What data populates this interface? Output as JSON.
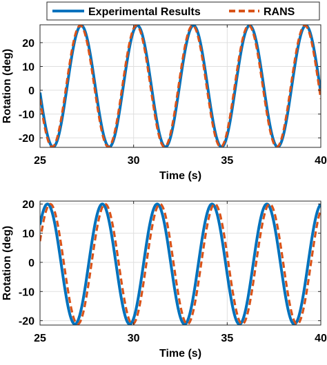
{
  "legend": {
    "placement": "top",
    "entries": [
      {
        "label": "Experimental Results",
        "color": "#0072BD",
        "style": "solid"
      },
      {
        "label": "RANS",
        "color": "#D95319",
        "style": "dashed"
      }
    ]
  },
  "chart_data": [
    {
      "type": "line",
      "xlabel": "Time (s)",
      "ylabel": "Rotation (deg)",
      "xlim": [
        25,
        40
      ],
      "ylim": [
        -24,
        27.5
      ],
      "xticks": [
        25,
        30,
        35,
        40
      ],
      "yticks": [
        -20,
        -10,
        0,
        10,
        20
      ],
      "grid": true,
      "series": [
        {
          "name": "Experimental Results",
          "color": "#0072BD",
          "style": "solid",
          "model": "sine",
          "amplitude": 25.5,
          "offset": 1.7,
          "period": 3.0,
          "peak_time": 27.2
        },
        {
          "name": "RANS",
          "color": "#D95319",
          "style": "dashed",
          "model": "sine",
          "amplitude": 25.5,
          "offset": 1.7,
          "period": 3.0,
          "peak_time": 27.15
        }
      ]
    },
    {
      "type": "line",
      "xlabel": "Time (s)",
      "ylabel": "Rotation (deg)",
      "xlim": [
        25,
        40
      ],
      "ylim": [
        -21.5,
        21
      ],
      "xticks": [
        25,
        30,
        35,
        40
      ],
      "yticks": [
        -20,
        -10,
        0,
        10,
        20
      ],
      "grid": true,
      "series": [
        {
          "name": "Experimental Results",
          "color": "#0072BD",
          "style": "solid",
          "model": "sine",
          "amplitude": 20.6,
          "offset": -0.6,
          "period": 2.93,
          "peak_time": 25.4
        },
        {
          "name": "RANS",
          "color": "#D95319",
          "style": "dashed",
          "model": "sine",
          "amplitude": 20.6,
          "offset": -0.6,
          "period": 2.93,
          "peak_time": 25.55
        }
      ]
    }
  ]
}
